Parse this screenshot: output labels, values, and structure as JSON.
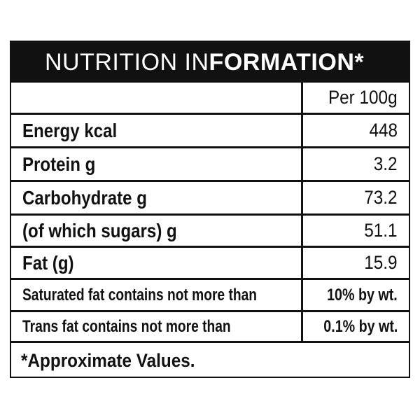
{
  "header": {
    "title_part1": "NUTRITION IN",
    "title_part2": "FORMATION*"
  },
  "table": {
    "column_header": "Per 100g",
    "rows": [
      {
        "label": "Energy kcal",
        "value": "448"
      },
      {
        "label": "Protein g",
        "value": "3.2"
      },
      {
        "label": "Carbohydrate g",
        "value": "73.2"
      },
      {
        "label": "(of which sugars) g",
        "value": "51.1"
      },
      {
        "label": "Fat (g)",
        "value": "15.9"
      },
      {
        "label": "Saturated fat contains not more than",
        "value": "10% by wt."
      },
      {
        "label": "Trans fat contains not more than",
        "value": "0.1% by wt."
      }
    ]
  },
  "footnote": "*Approximate Values."
}
